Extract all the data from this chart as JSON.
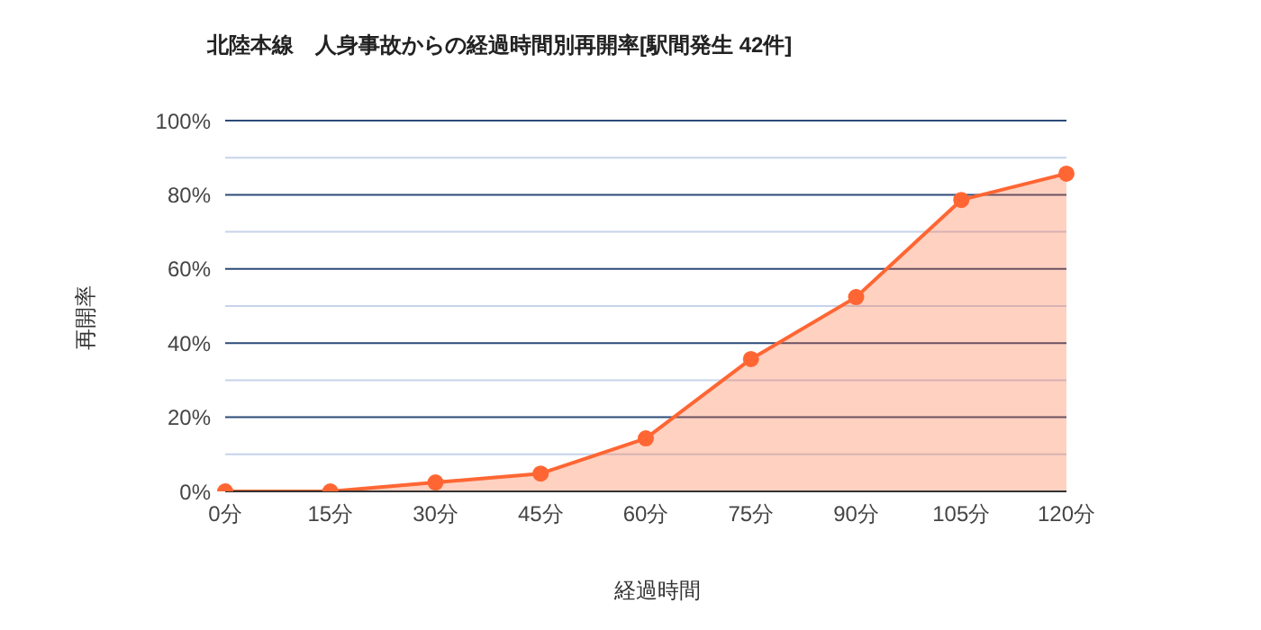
{
  "chart_data": {
    "type": "area",
    "title": "北陸本線　人身事故からの経過時間別再開率[駅間発生 42件]",
    "xlabel": "経過時間",
    "ylabel": "再開率",
    "categories": [
      "0分",
      "15分",
      "30分",
      "45分",
      "60分",
      "75分",
      "90分",
      "105分",
      "120分"
    ],
    "series": [
      {
        "color": "#ff6633",
        "values": [
          0,
          0,
          2.4,
          4.8,
          14.3,
          35.7,
          52.4,
          78.6,
          85.7
        ]
      }
    ],
    "ylim": [
      0,
      100
    ],
    "yticks": [
      {
        "value": 0,
        "label": "0%"
      },
      {
        "value": 10,
        "label": null
      },
      {
        "value": 20,
        "label": "20%"
      },
      {
        "value": 30,
        "label": null
      },
      {
        "value": 40,
        "label": "40%"
      },
      {
        "value": 50,
        "label": null
      },
      {
        "value": 60,
        "label": "60%"
      },
      {
        "value": 70,
        "label": null
      },
      {
        "value": 80,
        "label": "80%"
      },
      {
        "value": 90,
        "label": null
      },
      {
        "value": 100,
        "label": "100%"
      }
    ],
    "grid": "y",
    "marker": "circle"
  }
}
